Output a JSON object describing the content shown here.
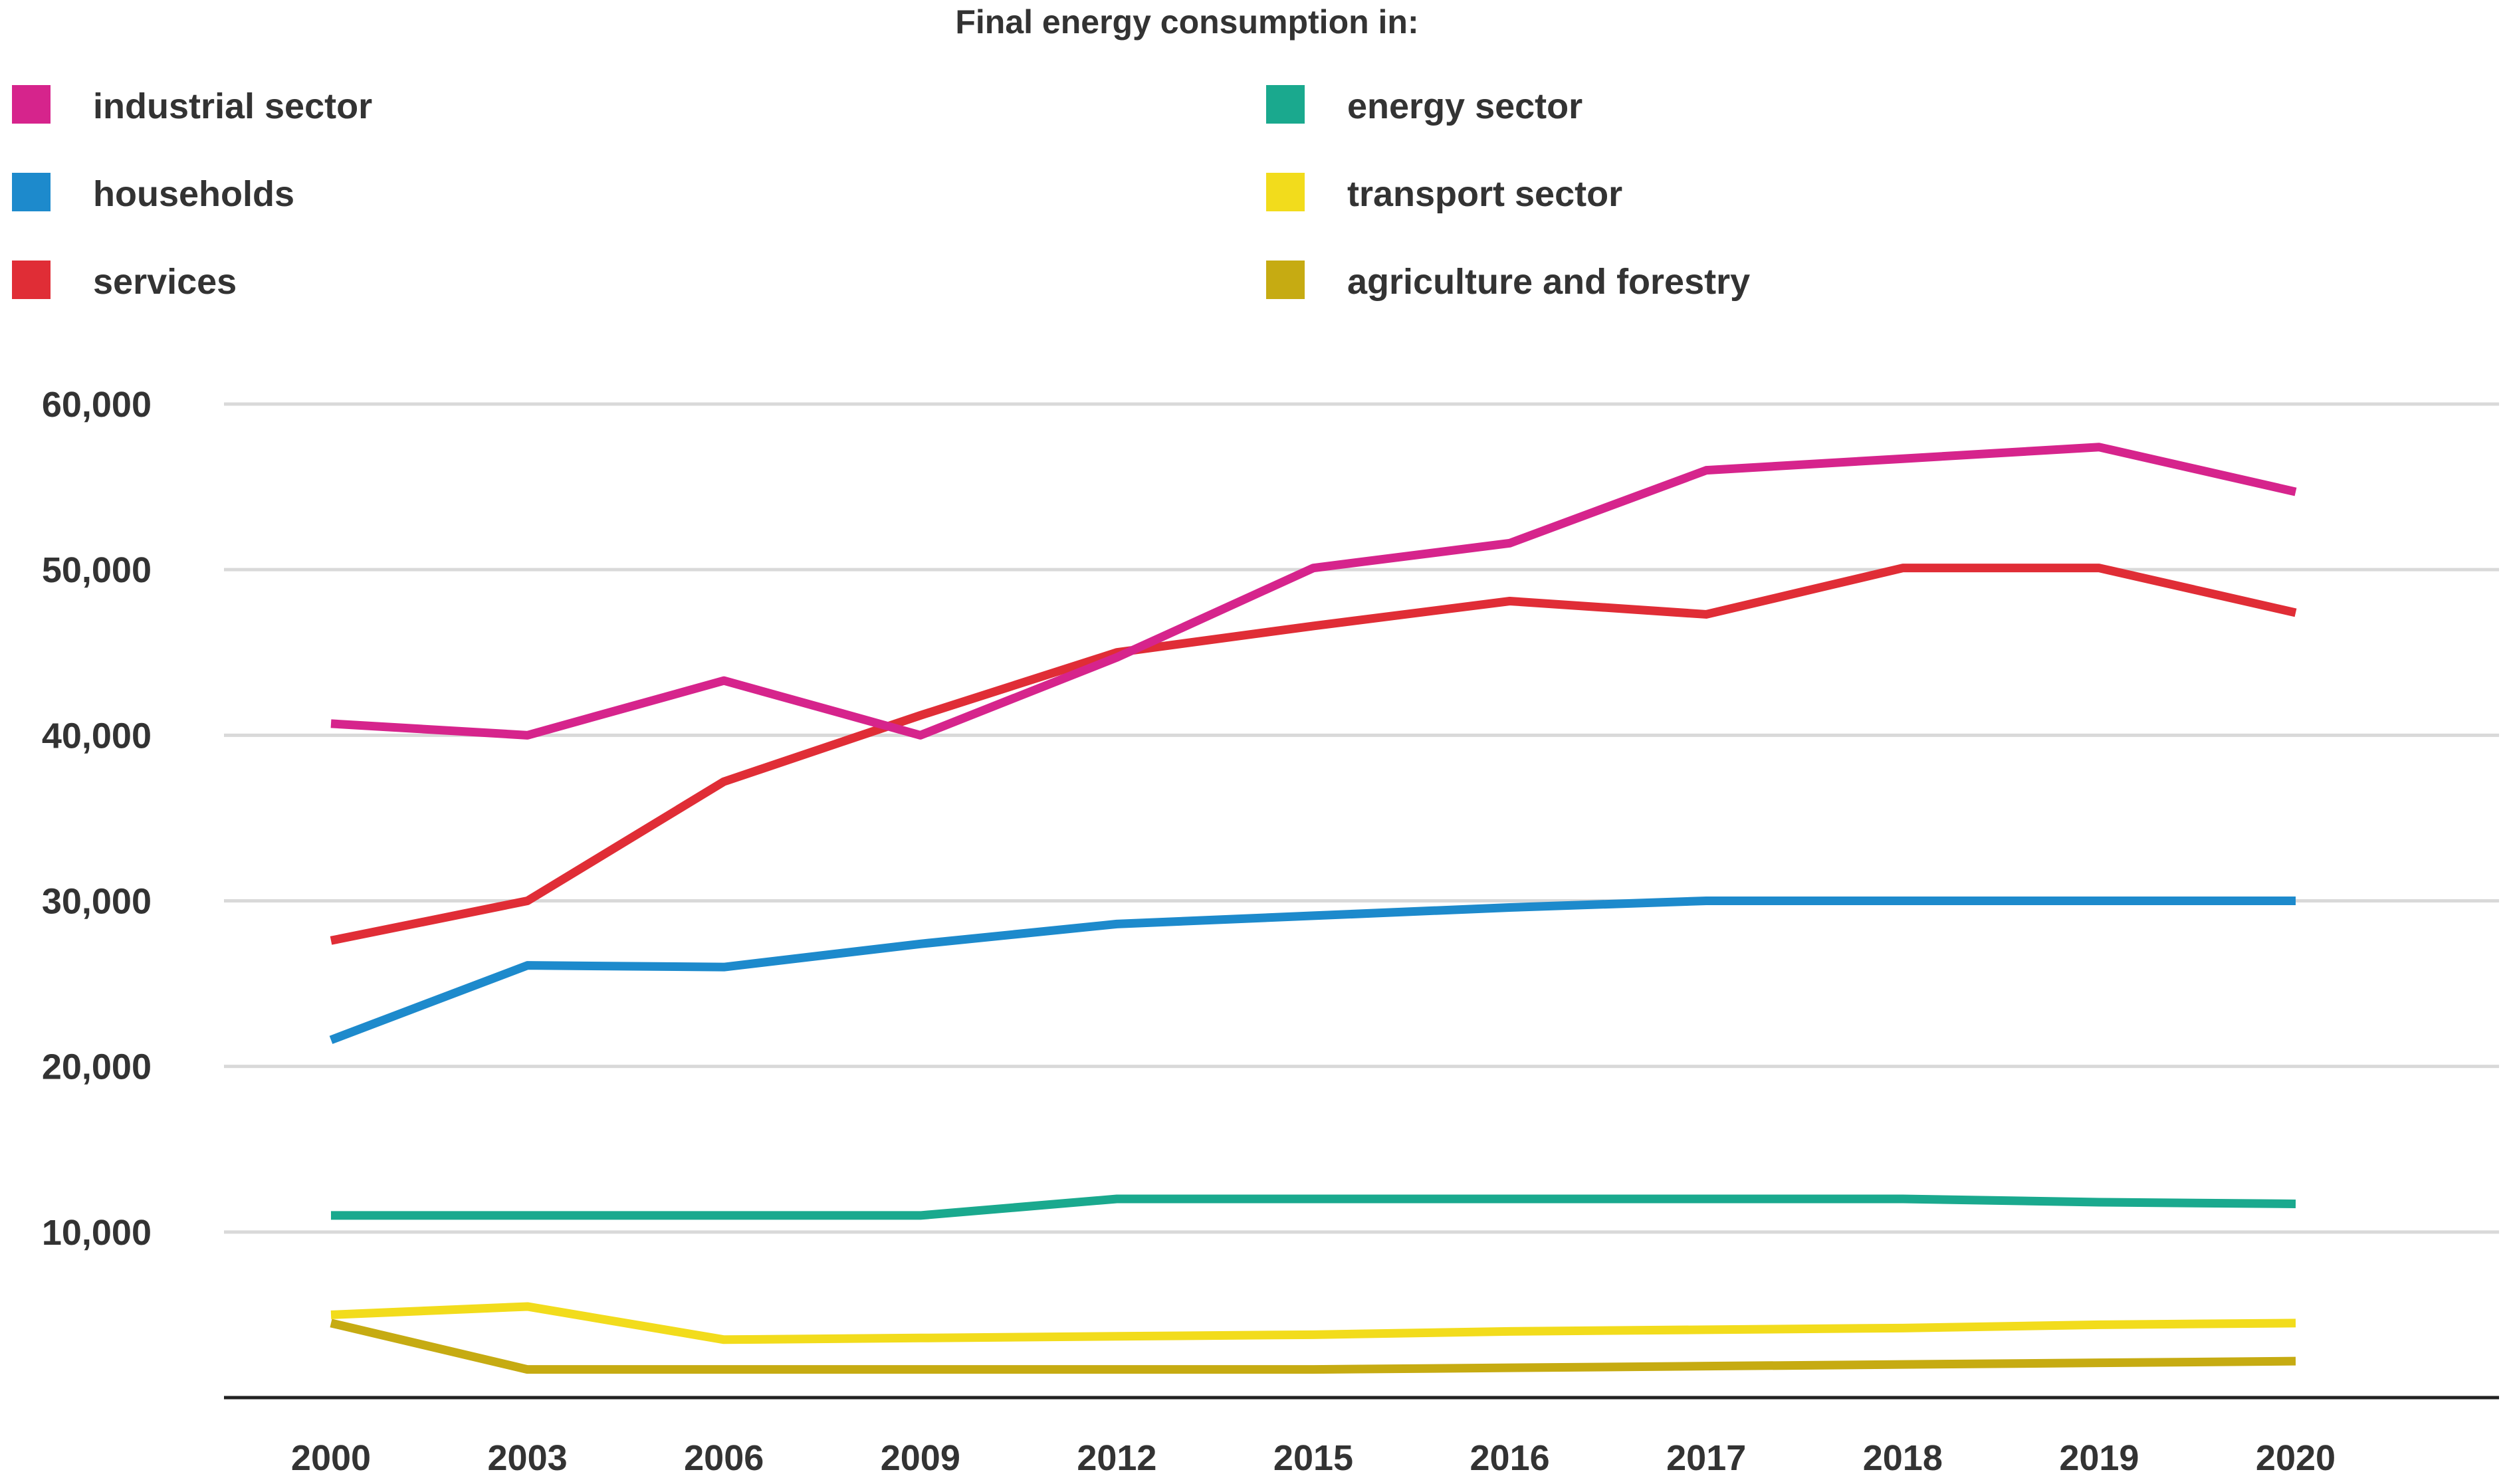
{
  "chart_data": {
    "type": "line",
    "title": "Final energy consumption in:",
    "xlabel": "",
    "ylabel": "",
    "ylim": [
      0,
      60000
    ],
    "yticks": [
      10000,
      20000,
      30000,
      40000,
      50000,
      60000
    ],
    "ytick_labels": [
      "10,000",
      "20,000",
      "30,000",
      "40,000",
      "50,000",
      "60,000"
    ],
    "categories": [
      "2000",
      "2003",
      "2006",
      "2009",
      "2012",
      "2015",
      "2016",
      "2017",
      "2018",
      "2019",
      "2020"
    ],
    "legend_position": "top",
    "grid": true,
    "series": [
      {
        "name": "industrial sector",
        "color": "#d6248c",
        "values": [
          40700,
          40000,
          43300,
          40000,
          44700,
          50100,
          51600,
          56000,
          56700,
          57400,
          54700
        ]
      },
      {
        "name": "energy sector",
        "color": "#1aa98e",
        "values": [
          11000,
          11000,
          11000,
          11000,
          12000,
          12000,
          12000,
          12000,
          12000,
          11800,
          11700
        ]
      },
      {
        "name": "households",
        "color": "#1d8acc",
        "values": [
          21600,
          26100,
          26000,
          27400,
          28600,
          29100,
          29600,
          30000,
          30000,
          30000,
          30000
        ]
      },
      {
        "name": "transport sector",
        "color": "#f2dc1c",
        "values": [
          5000,
          5500,
          3500,
          3600,
          3700,
          3800,
          4000,
          4100,
          4200,
          4400,
          4500
        ]
      },
      {
        "name": "services",
        "color": "#e02d36",
        "values": [
          27600,
          30000,
          37200,
          41200,
          45000,
          46600,
          48100,
          47300,
          50100,
          50100,
          47400
        ]
      },
      {
        "name": "agriculture and forestry",
        "color": "#c6ab12",
        "values": [
          4500,
          1700,
          1700,
          1700,
          1700,
          1700,
          1800,
          1900,
          2000,
          2100,
          2200
        ]
      }
    ]
  }
}
